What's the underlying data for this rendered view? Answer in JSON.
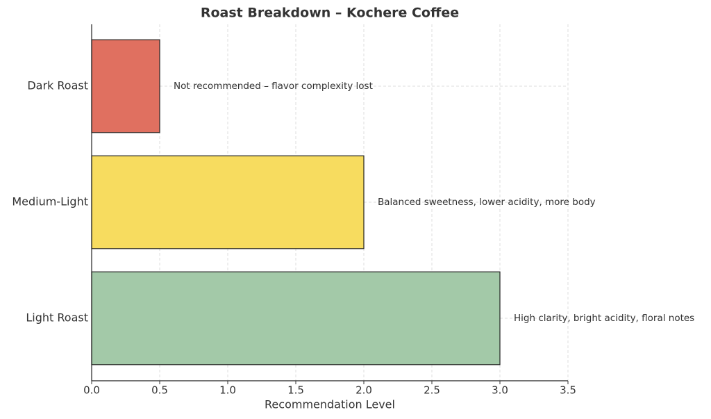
{
  "chart_data": {
    "type": "barh",
    "title": "Roast Breakdown – Kochere Coffee",
    "xlabel": "Recommendation Level",
    "categories": [
      "Light Roast",
      "Medium-Light",
      "Dark Roast"
    ],
    "values": [
      3,
      2,
      0.5
    ],
    "colors": [
      "#a3c9a8",
      "#f7dc5f",
      "#e07060"
    ],
    "annotations": [
      "High clarity, bright acidity, floral notes",
      "Balanced sweetness, lower acidity, more body",
      "Not recommended – flavor complexity lost"
    ],
    "xlim": [
      0,
      3.5
    ],
    "xticks": [
      {
        "value": 0,
        "label": "0.0"
      },
      0.5,
      {
        "value": 1,
        "label": "1.0"
      },
      1.5,
      {
        "value": 2,
        "label": "2.0"
      },
      2.5,
      {
        "value": 3,
        "label": "3.0"
      },
      3.5
    ],
    "grid": true
  }
}
